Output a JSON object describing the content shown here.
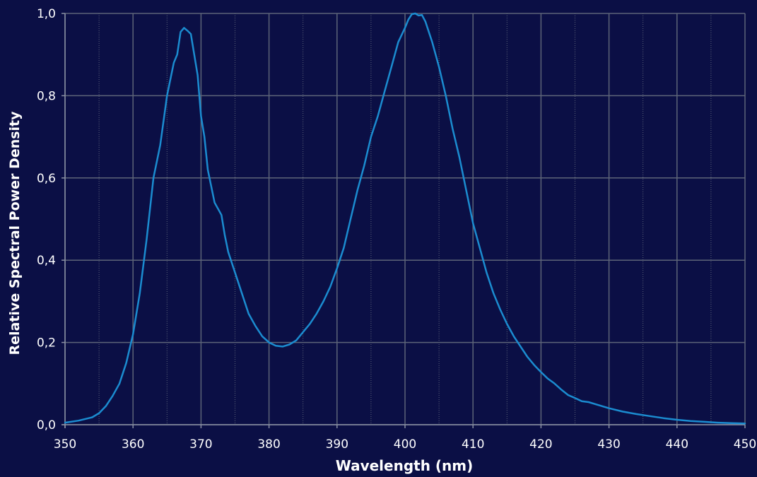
{
  "chart_data": {
    "type": "line",
    "title": "",
    "xlabel": "Wavelength (nm)",
    "ylabel": "Relative Spectral Power Density",
    "xlim": [
      350,
      450
    ],
    "ylim": [
      0.0,
      1.0
    ],
    "grid": true,
    "x_ticks": [
      {
        "value": 350,
        "label": "350"
      },
      {
        "value": 360,
        "label": "360"
      },
      {
        "value": 370,
        "label": "370"
      },
      {
        "value": 380,
        "label": "380"
      },
      {
        "value": 390,
        "label": "390"
      },
      {
        "value": 400,
        "label": "400"
      },
      {
        "value": 410,
        "label": "410"
      },
      {
        "value": 420,
        "label": "420"
      },
      {
        "value": 430,
        "label": "430"
      },
      {
        "value": 440,
        "label": "440"
      },
      {
        "value": 450,
        "label": "450"
      }
    ],
    "y_ticks": [
      {
        "value": 0.0,
        "label": "0,0"
      },
      {
        "value": 0.2,
        "label": "0,2"
      },
      {
        "value": 0.4,
        "label": "0,4"
      },
      {
        "value": 0.6,
        "label": "0,6"
      },
      {
        "value": 0.8,
        "label": "0,8"
      },
      {
        "value": 1.0,
        "label": "1,0"
      }
    ],
    "minor_x_grid": [
      355,
      365,
      375,
      385,
      395,
      405,
      415,
      425,
      435,
      445
    ],
    "series": [
      {
        "color": "#1b8cd0",
        "x": [
          350,
          352,
          354,
          355,
          356,
          357,
          358,
          359,
          360,
          361,
          362,
          363,
          364,
          365,
          366,
          366.5,
          367,
          367.5,
          368,
          368.5,
          369,
          369.5,
          370,
          370.5,
          371,
          372,
          373,
          373.5,
          374,
          375,
          376,
          377,
          378,
          379,
          380,
          381,
          382,
          383,
          384,
          385,
          386,
          387,
          388,
          389,
          390,
          391,
          392,
          393,
          394,
          395,
          396,
          397,
          398,
          399,
          400,
          400.5,
          401,
          401.5,
          402,
          402.5,
          403,
          404,
          405,
          406,
          407,
          408,
          409,
          410,
          411,
          412,
          413,
          414,
          415,
          416,
          417,
          418,
          419,
          420,
          421,
          422,
          423,
          424,
          425,
          426,
          427,
          428,
          430,
          432,
          434,
          436,
          438,
          440,
          442,
          444,
          446,
          448,
          450
        ],
        "y": [
          0.005,
          0.01,
          0.018,
          0.028,
          0.045,
          0.07,
          0.1,
          0.15,
          0.22,
          0.32,
          0.45,
          0.6,
          0.68,
          0.8,
          0.88,
          0.9,
          0.955,
          0.965,
          0.958,
          0.95,
          0.9,
          0.85,
          0.75,
          0.7,
          0.62,
          0.54,
          0.51,
          0.46,
          0.42,
          0.37,
          0.32,
          0.27,
          0.24,
          0.215,
          0.2,
          0.192,
          0.19,
          0.195,
          0.205,
          0.225,
          0.245,
          0.27,
          0.3,
          0.335,
          0.38,
          0.43,
          0.5,
          0.57,
          0.63,
          0.7,
          0.75,
          0.81,
          0.87,
          0.93,
          0.965,
          0.985,
          0.998,
          1.0,
          0.995,
          0.996,
          0.98,
          0.93,
          0.87,
          0.8,
          0.72,
          0.65,
          0.57,
          0.49,
          0.43,
          0.37,
          0.32,
          0.28,
          0.245,
          0.215,
          0.19,
          0.165,
          0.145,
          0.128,
          0.112,
          0.1,
          0.085,
          0.072,
          0.065,
          0.057,
          0.055,
          0.05,
          0.04,
          0.032,
          0.026,
          0.021,
          0.016,
          0.012,
          0.009,
          0.007,
          0.005,
          0.004,
          0.003
        ]
      }
    ]
  }
}
